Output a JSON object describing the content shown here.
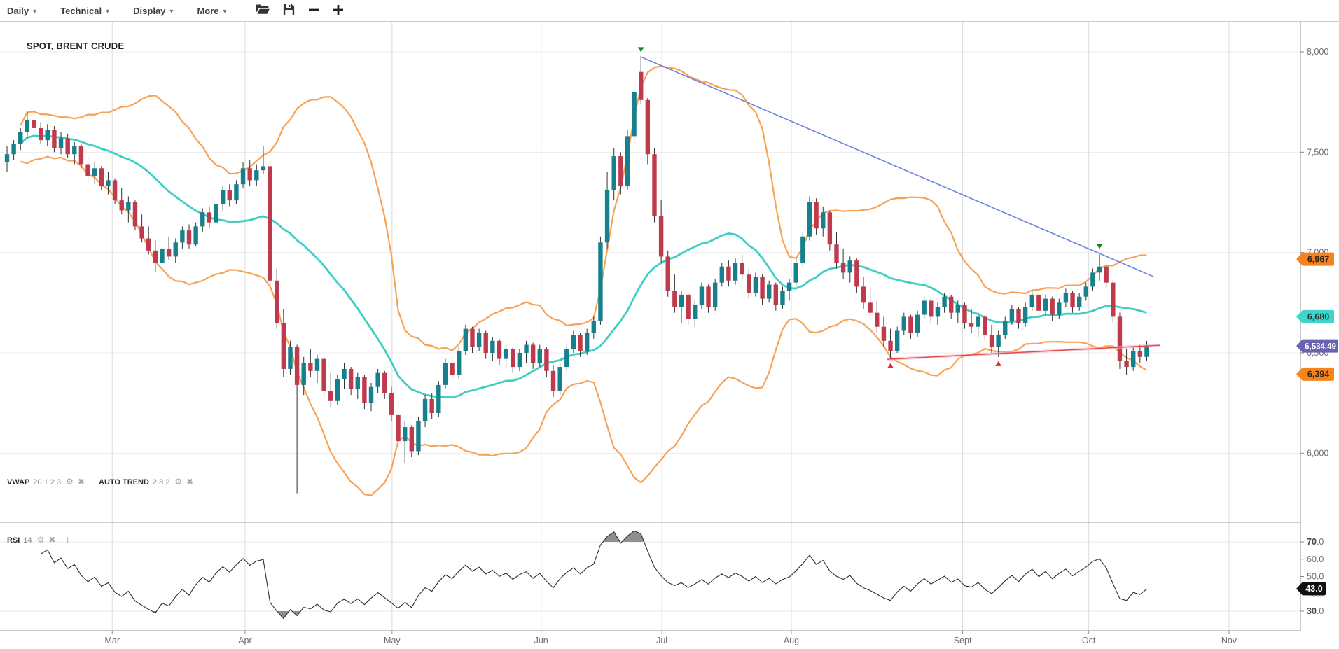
{
  "icons": {
    "caret": "▾",
    "gear": "⚙",
    "close": "✖",
    "up_arrow": "↑"
  },
  "toolbar": {
    "menus": [
      {
        "label": "Daily"
      },
      {
        "label": "Technical"
      },
      {
        "label": "Display"
      },
      {
        "label": "More"
      }
    ],
    "buttons": [
      {
        "name": "open-chart"
      },
      {
        "name": "save-chart"
      },
      {
        "name": "zoom-out"
      },
      {
        "name": "zoom-in"
      }
    ]
  },
  "chart": {
    "symbol_label": "SPOT, BRENT CRUDE"
  },
  "indicator_legend": {
    "vwap_name": "VWAP",
    "vwap_params": "20 1 2 3",
    "autotrend_name": "AUTO TREND",
    "autotrend_params": "2 8 2"
  },
  "rsi_legend": {
    "name": "RSI",
    "param": "14"
  },
  "price_axis": {
    "ticks": [
      {
        "value": 8000,
        "label": "8,000"
      },
      {
        "value": 7500,
        "label": "7,500"
      },
      {
        "value": 7000,
        "label": "7,000"
      },
      {
        "value": 6500,
        "label": "6,500"
      },
      {
        "value": 6000,
        "label": "6,000"
      }
    ],
    "tags": [
      {
        "id": "band-upper",
        "label": "6,967",
        "value": 6967,
        "bg": "#f5831f",
        "fg": "#332a18"
      },
      {
        "id": "vwap-mid",
        "label": "6,680",
        "value": 6680,
        "bg": "#41d4ca",
        "fg": "#173a38"
      },
      {
        "id": "last-price",
        "label": "6,534.49",
        "value": 6534.49,
        "bg": "#6a62b2",
        "fg": "#ffffff"
      },
      {
        "id": "band-lower",
        "label": "6,394",
        "value": 6394,
        "bg": "#f5831f",
        "fg": "#332a18"
      }
    ]
  },
  "rsi_axis": {
    "ticks": [
      {
        "value": 70,
        "label": "70.0",
        "bold": true
      },
      {
        "value": 60,
        "label": "60.0",
        "bold": false
      },
      {
        "value": 50,
        "label": "50.0",
        "bold": false
      },
      {
        "value": 40,
        "label": "40.0",
        "bold": false
      },
      {
        "value": 30,
        "label": "30.0",
        "bold": true
      }
    ],
    "tag": {
      "label": "43.0",
      "value": 43.0,
      "bg": "#111111",
      "fg": "#ffffff"
    }
  },
  "time_axis": {
    "months": [
      {
        "label": "Mar",
        "i": 15.6
      },
      {
        "label": "Apr",
        "i": 35.3
      },
      {
        "label": "May",
        "i": 57.1
      },
      {
        "label": "Jun",
        "i": 79.2
      },
      {
        "label": "Jul",
        "i": 97.1
      },
      {
        "label": "Aug",
        "i": 116.3
      },
      {
        "label": "Sept",
        "i": 141.7
      },
      {
        "label": "Oct",
        "i": 160.4
      },
      {
        "label": "Nov",
        "i": 181.2
      }
    ]
  },
  "chart_data": {
    "type": "candlestick",
    "title": "SPOT, BRENT CRUDE",
    "timeframe": "Daily",
    "ylim": [
      5650,
      8150
    ],
    "price_gridlines": [
      6000,
      6500,
      7000,
      7500,
      8000
    ],
    "last_price": 6534.49,
    "candle_colors": {
      "up": "#16808d",
      "down": "#c03a4e",
      "wick": "#333333"
    },
    "candles": [
      [
        7450,
        7530,
        7400,
        7490
      ],
      [
        7490,
        7560,
        7460,
        7540
      ],
      [
        7540,
        7620,
        7510,
        7600
      ],
      [
        7600,
        7700,
        7570,
        7660
      ],
      [
        7660,
        7710,
        7600,
        7620
      ],
      [
        7620,
        7650,
        7540,
        7560
      ],
      [
        7560,
        7640,
        7530,
        7610
      ],
      [
        7610,
        7630,
        7500,
        7520
      ],
      [
        7520,
        7600,
        7490,
        7570
      ],
      [
        7570,
        7590,
        7470,
        7490
      ],
      [
        7490,
        7550,
        7440,
        7530
      ],
      [
        7530,
        7540,
        7420,
        7440
      ],
      [
        7440,
        7480,
        7350,
        7380
      ],
      [
        7380,
        7450,
        7340,
        7420
      ],
      [
        7420,
        7430,
        7310,
        7330
      ],
      [
        7330,
        7400,
        7290,
        7360
      ],
      [
        7360,
        7370,
        7240,
        7260
      ],
      [
        7260,
        7320,
        7190,
        7210
      ],
      [
        7210,
        7280,
        7150,
        7250
      ],
      [
        7250,
        7260,
        7110,
        7130
      ],
      [
        7130,
        7190,
        7050,
        7070
      ],
      [
        7070,
        7130,
        6990,
        7010
      ],
      [
        7010,
        7060,
        6900,
        6950
      ],
      [
        6950,
        7040,
        6920,
        7020
      ],
      [
        7020,
        7080,
        6960,
        6980
      ],
      [
        6980,
        7070,
        6950,
        7050
      ],
      [
        7050,
        7130,
        7020,
        7110
      ],
      [
        7110,
        7140,
        7020,
        7040
      ],
      [
        7040,
        7150,
        7030,
        7130
      ],
      [
        7130,
        7220,
        7100,
        7200
      ],
      [
        7200,
        7230,
        7120,
        7150
      ],
      [
        7150,
        7260,
        7130,
        7240
      ],
      [
        7240,
        7330,
        7210,
        7310
      ],
      [
        7310,
        7340,
        7230,
        7260
      ],
      [
        7260,
        7360,
        7240,
        7340
      ],
      [
        7340,
        7450,
        7320,
        7420
      ],
      [
        7420,
        7460,
        7330,
        7360
      ],
      [
        7360,
        7440,
        7330,
        7410
      ],
      [
        7410,
        7530,
        7390,
        7430
      ],
      [
        7430,
        7460,
        6820,
        6860
      ],
      [
        6860,
        6920,
        6620,
        6650
      ],
      [
        6650,
        6720,
        6380,
        6420
      ],
      [
        6420,
        6560,
        6390,
        6530
      ],
      [
        6530,
        6540,
        5800,
        6340
      ],
      [
        6340,
        6480,
        6290,
        6450
      ],
      [
        6450,
        6520,
        6380,
        6410
      ],
      [
        6410,
        6490,
        6350,
        6470
      ],
      [
        6470,
        6480,
        6280,
        6310
      ],
      [
        6310,
        6400,
        6230,
        6260
      ],
      [
        6260,
        6390,
        6240,
        6370
      ],
      [
        6370,
        6450,
        6320,
        6420
      ],
      [
        6420,
        6430,
        6290,
        6320
      ],
      [
        6320,
        6400,
        6270,
        6380
      ],
      [
        6380,
        6390,
        6220,
        6250
      ],
      [
        6250,
        6350,
        6210,
        6330
      ],
      [
        6330,
        6420,
        6300,
        6400
      ],
      [
        6400,
        6410,
        6270,
        6300
      ],
      [
        6300,
        6330,
        6160,
        6190
      ],
      [
        6190,
        6260,
        6020,
        6060
      ],
      [
        6060,
        6160,
        5950,
        6130
      ],
      [
        6130,
        6140,
        5980,
        6010
      ],
      [
        6010,
        6180,
        5990,
        6160
      ],
      [
        6160,
        6290,
        6130,
        6270
      ],
      [
        6270,
        6300,
        6170,
        6200
      ],
      [
        6200,
        6360,
        6180,
        6340
      ],
      [
        6340,
        6470,
        6320,
        6450
      ],
      [
        6450,
        6480,
        6360,
        6390
      ],
      [
        6390,
        6530,
        6370,
        6510
      ],
      [
        6510,
        6640,
        6490,
        6620
      ],
      [
        6620,
        6630,
        6500,
        6530
      ],
      [
        6530,
        6620,
        6510,
        6600
      ],
      [
        6600,
        6610,
        6470,
        6500
      ],
      [
        6500,
        6580,
        6460,
        6560
      ],
      [
        6560,
        6570,
        6440,
        6470
      ],
      [
        6470,
        6550,
        6430,
        6520
      ],
      [
        6520,
        6530,
        6400,
        6430
      ],
      [
        6430,
        6520,
        6410,
        6500
      ],
      [
        6500,
        6560,
        6450,
        6540
      ],
      [
        6540,
        6550,
        6420,
        6450
      ],
      [
        6450,
        6540,
        6430,
        6520
      ],
      [
        6520,
        6530,
        6380,
        6410
      ],
      [
        6410,
        6440,
        6280,
        6310
      ],
      [
        6310,
        6450,
        6290,
        6430
      ],
      [
        6430,
        6540,
        6410,
        6520
      ],
      [
        6520,
        6610,
        6500,
        6590
      ],
      [
        6590,
        6600,
        6480,
        6510
      ],
      [
        6510,
        6620,
        6490,
        6600
      ],
      [
        6600,
        6680,
        6570,
        6660
      ],
      [
        6660,
        7080,
        6640,
        7050
      ],
      [
        7050,
        7400,
        7020,
        7310
      ],
      [
        7310,
        7520,
        7260,
        7480
      ],
      [
        7480,
        7500,
        7290,
        7330
      ],
      [
        7330,
        7610,
        7310,
        7580
      ],
      [
        7580,
        7830,
        7540,
        7800
      ],
      [
        7900,
        7980,
        7740,
        7760
      ],
      [
        7760,
        7770,
        7440,
        7490
      ],
      [
        7490,
        7520,
        7150,
        7180
      ],
      [
        7180,
        7260,
        6950,
        6980
      ],
      [
        6980,
        7010,
        6780,
        6810
      ],
      [
        6810,
        6890,
        6700,
        6730
      ],
      [
        6730,
        6810,
        6650,
        6790
      ],
      [
        6790,
        6800,
        6640,
        6670
      ],
      [
        6670,
        6760,
        6630,
        6740
      ],
      [
        6740,
        6850,
        6720,
        6830
      ],
      [
        6830,
        6840,
        6700,
        6730
      ],
      [
        6730,
        6870,
        6710,
        6850
      ],
      [
        6850,
        6950,
        6830,
        6930
      ],
      [
        6930,
        6960,
        6830,
        6860
      ],
      [
        6860,
        6970,
        6840,
        6950
      ],
      [
        6950,
        6990,
        6860,
        6890
      ],
      [
        6890,
        6920,
        6770,
        6800
      ],
      [
        6800,
        6900,
        6780,
        6880
      ],
      [
        6880,
        6890,
        6740,
        6770
      ],
      [
        6770,
        6860,
        6750,
        6840
      ],
      [
        6840,
        6850,
        6710,
        6740
      ],
      [
        6740,
        6830,
        6720,
        6810
      ],
      [
        6810,
        6870,
        6760,
        6850
      ],
      [
        6850,
        6970,
        6830,
        6950
      ],
      [
        6950,
        7100,
        6930,
        7080
      ],
      [
        7080,
        7280,
        7060,
        7250
      ],
      [
        7250,
        7270,
        7090,
        7120
      ],
      [
        7120,
        7230,
        7080,
        7200
      ],
      [
        7200,
        7210,
        7010,
        7040
      ],
      [
        7040,
        7100,
        6920,
        6950
      ],
      [
        6950,
        7020,
        6870,
        6900
      ],
      [
        6900,
        6980,
        6850,
        6960
      ],
      [
        6960,
        6970,
        6800,
        6830
      ],
      [
        6830,
        6880,
        6720,
        6750
      ],
      [
        6750,
        6820,
        6680,
        6700
      ],
      [
        6700,
        6760,
        6600,
        6630
      ],
      [
        6630,
        6680,
        6530,
        6560
      ],
      [
        6560,
        6620,
        6470,
        6510
      ],
      [
        6510,
        6630,
        6500,
        6610
      ],
      [
        6610,
        6700,
        6590,
        6680
      ],
      [
        6680,
        6690,
        6570,
        6600
      ],
      [
        6600,
        6710,
        6580,
        6690
      ],
      [
        6690,
        6780,
        6670,
        6760
      ],
      [
        6760,
        6770,
        6650,
        6680
      ],
      [
        6680,
        6750,
        6640,
        6730
      ],
      [
        6730,
        6800,
        6700,
        6780
      ],
      [
        6780,
        6790,
        6670,
        6700
      ],
      [
        6700,
        6760,
        6650,
        6740
      ],
      [
        6740,
        6750,
        6620,
        6650
      ],
      [
        6650,
        6720,
        6600,
        6630
      ],
      [
        6630,
        6700,
        6580,
        6680
      ],
      [
        6680,
        6690,
        6560,
        6590
      ],
      [
        6590,
        6640,
        6500,
        6530
      ],
      [
        6530,
        6610,
        6480,
        6590
      ],
      [
        6590,
        6680,
        6570,
        6660
      ],
      [
        6660,
        6740,
        6640,
        6720
      ],
      [
        6720,
        6730,
        6620,
        6650
      ],
      [
        6650,
        6750,
        6630,
        6730
      ],
      [
        6730,
        6810,
        6710,
        6790
      ],
      [
        6790,
        6800,
        6680,
        6710
      ],
      [
        6710,
        6790,
        6690,
        6770
      ],
      [
        6770,
        6780,
        6660,
        6690
      ],
      [
        6690,
        6770,
        6670,
        6750
      ],
      [
        6750,
        6820,
        6730,
        6800
      ],
      [
        6800,
        6810,
        6700,
        6730
      ],
      [
        6730,
        6800,
        6710,
        6780
      ],
      [
        6780,
        6850,
        6760,
        6830
      ],
      [
        6830,
        6920,
        6810,
        6900
      ],
      [
        6900,
        6990,
        6860,
        6930
      ],
      [
        6930,
        6940,
        6820,
        6850
      ],
      [
        6850,
        6860,
        6650,
        6680
      ],
      [
        6680,
        6700,
        6420,
        6460
      ],
      [
        6460,
        6520,
        6390,
        6430
      ],
      [
        6430,
        6530,
        6410,
        6510
      ],
      [
        6510,
        6540,
        6450,
        6480
      ],
      [
        6480,
        6560,
        6460,
        6534.49
      ]
    ],
    "overlays": {
      "vwap_bands": {
        "period": 20,
        "stdev_mult": 2,
        "last_upper": 6967,
        "last_mid": 6680,
        "last_lower": 6394,
        "mid_color": "#3ecfc4",
        "band_color": "#f7a254"
      },
      "trendlines": [
        {
          "name": "auto-trend-resistance",
          "color": "#5c78d9",
          "width": 1.6,
          "from": {
            "index": 94,
            "price": 7975
          },
          "to": {
            "index": 170,
            "price": 6880
          }
        },
        {
          "name": "auto-trend-support",
          "color": "#e03c3c",
          "glow_color": "#f4a7bb",
          "width": 1.4,
          "from": {
            "index": 130.5,
            "price": 6468
          },
          "to": {
            "index": 171,
            "price": 6538
          }
        }
      ],
      "markers": [
        {
          "index": 94,
          "shape": "triangle-down",
          "color": "#128a1f",
          "price": 7995
        },
        {
          "index": 162,
          "shape": "triangle-down",
          "color": "#128a1f",
          "price": 7015
        },
        {
          "index": 131,
          "shape": "triangle-up",
          "color": "#e8262a",
          "price": 6452
        },
        {
          "index": 147,
          "shape": "triangle-up",
          "color": "#e8262a",
          "price": 6462
        }
      ]
    },
    "rsi": {
      "period": 14,
      "current": 43.0,
      "overbought": 70,
      "oversold": 30,
      "line_color": "#2e2e2e",
      "fill_color": "#8f8f8f"
    }
  }
}
